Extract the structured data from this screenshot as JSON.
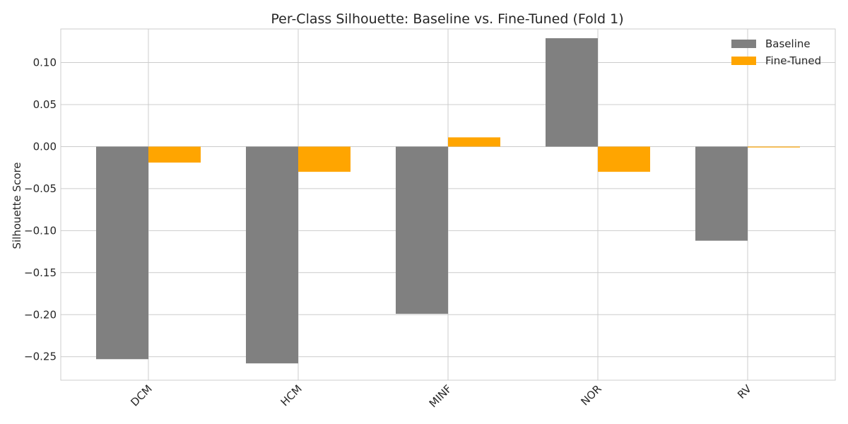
{
  "chart_data": {
    "type": "bar",
    "title": "Per-Class Silhouette: Baseline vs. Fine-Tuned (Fold 1)",
    "xlabel": "",
    "ylabel": "Silhouette Score",
    "categories": [
      "DCM",
      "HCM",
      "MINF",
      "NOR",
      "RV"
    ],
    "series": [
      {
        "name": "Baseline",
        "color": "#808080",
        "values": [
          -0.253,
          -0.258,
          -0.199,
          0.129,
          -0.112
        ]
      },
      {
        "name": "Fine-Tuned",
        "color": "#ffa500",
        "values": [
          -0.019,
          -0.03,
          0.011,
          -0.03,
          -0.001
        ]
      }
    ],
    "ylim": [
      -0.278,
      0.14
    ],
    "yticks": [
      0.1,
      0.05,
      0.0,
      -0.05,
      -0.1,
      -0.15,
      -0.2,
      -0.25
    ],
    "ytick_labels": [
      "0.10",
      "0.05",
      "0.00",
      "−0.05",
      "−0.10",
      "−0.15",
      "−0.20",
      "−0.25"
    ],
    "grid": true,
    "legend_position": "top-right",
    "xtick_rotation": "45deg"
  }
}
